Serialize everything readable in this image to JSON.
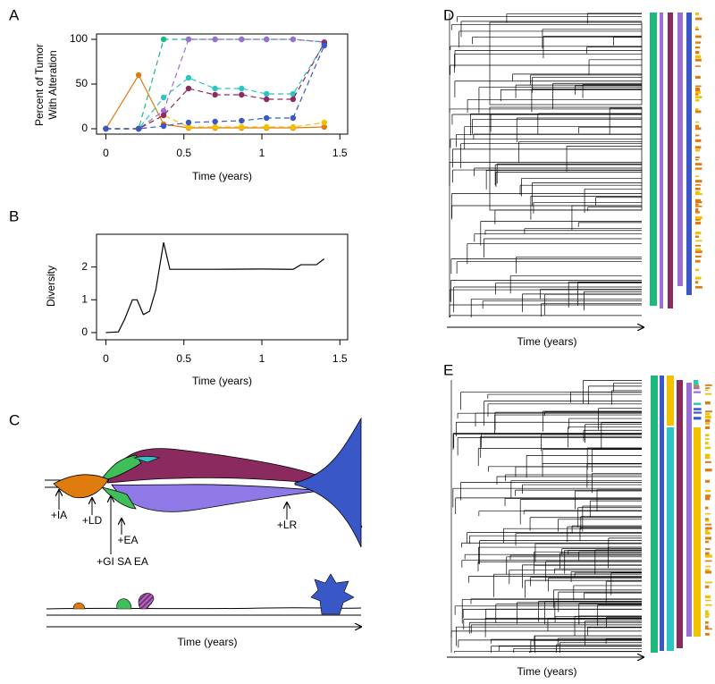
{
  "chart_data": [
    {
      "type": "line",
      "label": "A",
      "x_label": "Time (years)",
      "y_label": [
        "Percent of Tumor",
        "With Alteration"
      ],
      "x": [
        0,
        0.21,
        0.37,
        0.53,
        0.7,
        0.87,
        1.03,
        1.2,
        1.4
      ],
      "series": [
        {
          "color": "#e07b10",
          "linestyle": "solid",
          "values": [
            0,
            60,
            5,
            1,
            1,
            1,
            1,
            1,
            2
          ]
        },
        {
          "color": "#f2c200",
          "linestyle": "dashed",
          "values": [
            0,
            0,
            15,
            2,
            2,
            2,
            2,
            2,
            7
          ]
        },
        {
          "color": "#1db87b",
          "linestyle": "dashed",
          "values": [
            0,
            0,
            100,
            100,
            100,
            100,
            100,
            100,
            97
          ]
        },
        {
          "color": "#9b6fd6",
          "linestyle": "dashed",
          "values": [
            0,
            0,
            20,
            100,
            100,
            100,
            100,
            100,
            97
          ]
        },
        {
          "color": "#2ec4c4",
          "linestyle": "dashed",
          "values": [
            0,
            0,
            35,
            57,
            45,
            45,
            39,
            39,
            95
          ]
        },
        {
          "color": "#8b2a5e",
          "linestyle": "dashed",
          "values": [
            0,
            0,
            15,
            45,
            38,
            38,
            33,
            33,
            96
          ]
        },
        {
          "color": "#3a57c8",
          "linestyle": "dashed",
          "values": [
            0,
            0,
            3,
            7,
            8,
            9,
            12,
            12,
            93
          ]
        }
      ],
      "xlim": [
        -0.06,
        1.55
      ],
      "ylim": [
        -6,
        106
      ],
      "xticks": [
        0,
        0.5,
        1,
        1.5
      ],
      "yticks": [
        0,
        50,
        100
      ]
    },
    {
      "type": "line",
      "label": "B",
      "x_label": "Time (years)",
      "y_label": [
        "Diversity"
      ],
      "x": [
        0,
        0.08,
        0.12,
        0.17,
        0.2,
        0.24,
        0.28,
        0.32,
        0.37,
        0.41,
        0.7,
        1.0,
        1.2,
        1.25,
        1.35,
        1.4
      ],
      "series": [
        {
          "color": "#000000",
          "linestyle": "solid",
          "values": [
            0,
            0.02,
            0.4,
            1.0,
            1.0,
            0.55,
            0.65,
            1.3,
            2.75,
            1.93,
            1.93,
            1.94,
            1.93,
            2.07,
            2.07,
            2.25
          ]
        }
      ],
      "xlim": [
        -0.06,
        1.55
      ],
      "ylim": [
        -0.22,
        3.0
      ],
      "xticks": [
        0,
        0.5,
        1,
        1.5
      ],
      "yticks": [
        0,
        1,
        2
      ]
    }
  ],
  "diagrams": {
    "C": {
      "label": "C",
      "events": [
        "+IA",
        "+LD",
        "+EA",
        "+GI SA EA",
        "+LR"
      ],
      "x_label": "Time (years)"
    },
    "D": {
      "label": "D",
      "x_label": "Time (years)"
    },
    "E": {
      "label": "E",
      "x_label": "Time (years)"
    }
  }
}
